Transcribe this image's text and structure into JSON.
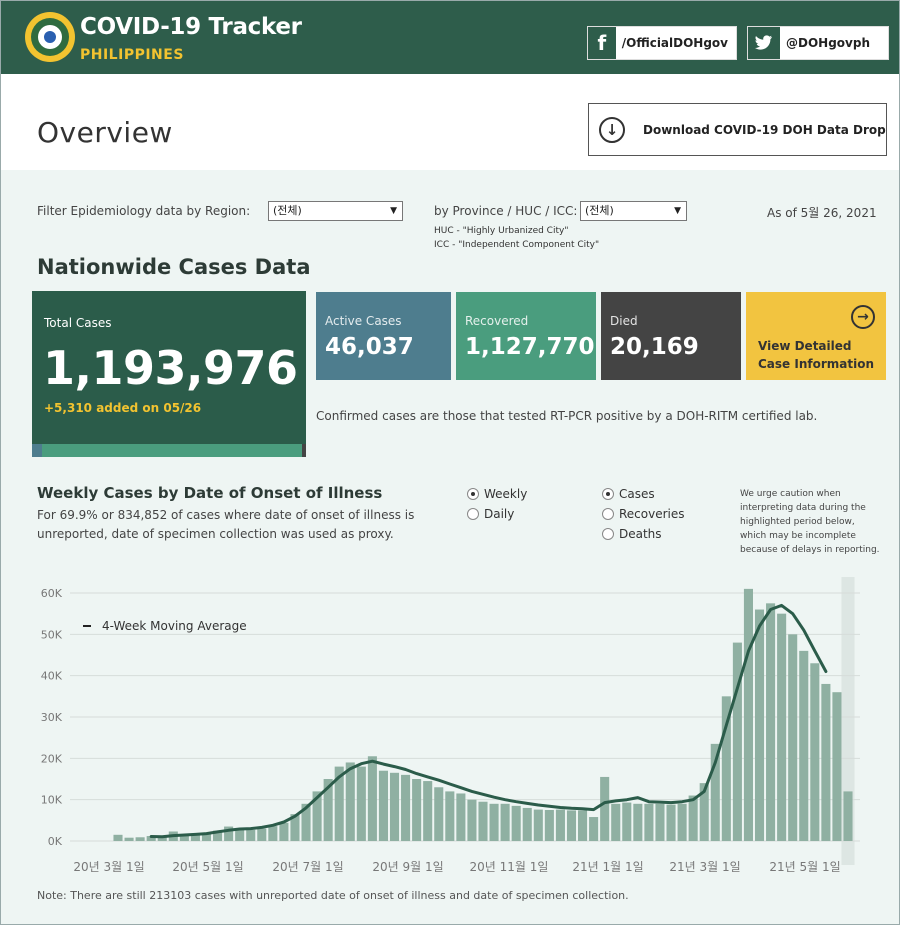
{
  "header": {
    "title": "COVID-19 Tracker",
    "subtitle": "PHILIPPINES",
    "facebook": "/OfficialDOHgov",
    "twitter": "@DOHgovph",
    "colors": {
      "bg": "#2e5d4b",
      "accent": "#f2c330"
    }
  },
  "overview": {
    "title": "Overview",
    "download_label": "Download COVID-19 DOH Data Drop"
  },
  "filters": {
    "region_label": "Filter Epidemiology data by Region:",
    "region_value": "(전체)",
    "province_label": "by Province / HUC / ICC:",
    "province_value": "(전체)",
    "huc_note": "HUC - \"Highly Urbanized City\"",
    "icc_note": "ICC - \"Independent Component City\"",
    "as_of": "As of 5월 26, 2021"
  },
  "nationwide": {
    "title": "Nationwide Cases Data",
    "total_label": "Total Cases",
    "total_value": "1,193,976",
    "added": "+5,310 added on 05/26",
    "active_label": "Active Cases",
    "active_value": "46,037",
    "recovered_label": "Recovered",
    "recovered_value": "1,127,770",
    "died_label": "Died",
    "died_value": "20,169",
    "detail_line1": "View Detailed",
    "detail_line2": "Case Information",
    "confirm_note": "Confirmed cases are those that tested RT-PCR positive by a DOH-RITM certified lab.",
    "colors": {
      "active": "#4e7d8e",
      "recovered": "#4a9d7e",
      "died": "#444444",
      "detail": "#f2c440"
    }
  },
  "weekly": {
    "title": "Weekly Cases by Date of Onset of Illness",
    "subtitle": "For 69.9% or 834,852 of cases where date of onset of illness is unreported, date of specimen collection was used as proxy.",
    "radio_weekly": "Weekly",
    "radio_daily": "Daily",
    "radio_cases": "Cases",
    "radio_recoveries": "Recoveries",
    "radio_deaths": "Deaths",
    "caution": "We urge caution when interpreting data during the highlighted period below, which may be incomplete because of delays in reporting.",
    "footer": "Note: There are still 213103 cases with unreported date of onset of illness and date of specimen collection."
  },
  "chart_data": {
    "type": "bar",
    "title": "Weekly Cases by Date of Onset of Illness",
    "ylim": [
      0,
      60000
    ],
    "yticks": [
      "0K",
      "10K",
      "20K",
      "30K",
      "40K",
      "50K",
      "60K"
    ],
    "xticks": [
      "20년 3월 1일",
      "20년 5월 1일",
      "20년 7월 1일",
      "20년 9월 1일",
      "20년 11월 1일",
      "21년 1월 1일",
      "21년 3월 1일",
      "21년 5월 1일"
    ],
    "legend": "4-Week Moving Average",
    "grid": true,
    "bar_color": "#8fb0a2",
    "line_color": "#2b5c4a",
    "values": [
      1500,
      800,
      900,
      1200,
      1300,
      2300,
      1500,
      1600,
      2000,
      2500,
      3500,
      2700,
      2700,
      3000,
      3600,
      4400,
      6500,
      9000,
      12000,
      15000,
      18000,
      19000,
      18000,
      20500,
      17000,
      16500,
      16000,
      15000,
      14500,
      13000,
      12000,
      11500,
      10000,
      9500,
      9000,
      9000,
      8500,
      8000,
      7600,
      7500,
      7600,
      7400,
      7400,
      5800,
      15500,
      9000,
      9300,
      9000,
      9000,
      9000,
      8800,
      9000,
      11000,
      14000,
      23500,
      35000,
      48000,
      61000,
      56000,
      57500,
      55000,
      50000,
      46000,
      43000,
      38000,
      36000,
      12000
    ],
    "moving_average": [
      null,
      null,
      null,
      1100,
      1050,
      1300,
      1450,
      1600,
      1800,
      2200,
      2600,
      2900,
      3000,
      3300,
      3800,
      4600,
      6000,
      8000,
      10500,
      13000,
      15500,
      17500,
      18700,
      19300,
      18600,
      18000,
      17300,
      16300,
      15500,
      14700,
      13800,
      12900,
      12000,
      11300,
      10600,
      10000,
      9500,
      9100,
      8700,
      8400,
      8100,
      7900,
      7800,
      7600,
      9300,
      9700,
      10000,
      10500,
      9500,
      9400,
      9300,
      9500,
      10000,
      12000,
      19000,
      28000,
      37000,
      46000,
      52000,
      56000,
      57000,
      55000,
      51000,
      46000,
      41000,
      null,
      null
    ],
    "highlight_bars": [
      66
    ]
  }
}
